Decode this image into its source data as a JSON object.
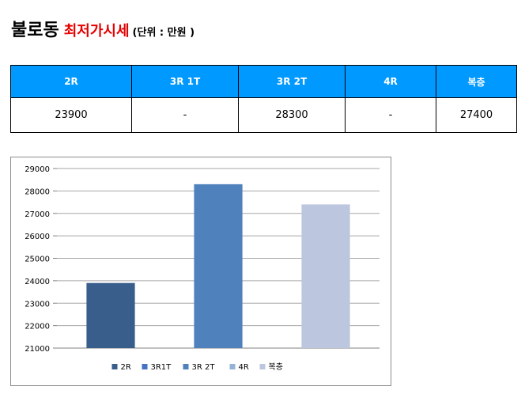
{
  "header": {
    "title_main": "불로동",
    "title_sub": "최저가시세",
    "title_unit": "(단위 : 만원 )"
  },
  "table": {
    "columns": [
      "2R",
      "3R 1T",
      "3R 2T",
      "4R",
      "복층"
    ],
    "values": [
      "23900",
      "-",
      "28300",
      "-",
      "27400"
    ]
  },
  "chart_data": {
    "type": "bar",
    "categories": [
      "2R",
      "3R1T",
      "3R 2T",
      "4R",
      "복층"
    ],
    "values": [
      23900,
      null,
      28300,
      null,
      27400
    ],
    "colors": [
      "#3a5e8c",
      "#4472c4",
      "#4f81bd",
      "#95b3d7",
      "#bcc6df"
    ],
    "ylim": [
      21000,
      29000
    ],
    "yticks": [
      21000,
      22000,
      23000,
      24000,
      25000,
      26000,
      27000,
      28000,
      29000
    ],
    "grid": true,
    "legend_position": "bottom",
    "title": "",
    "xlabel": "",
    "ylabel": ""
  }
}
